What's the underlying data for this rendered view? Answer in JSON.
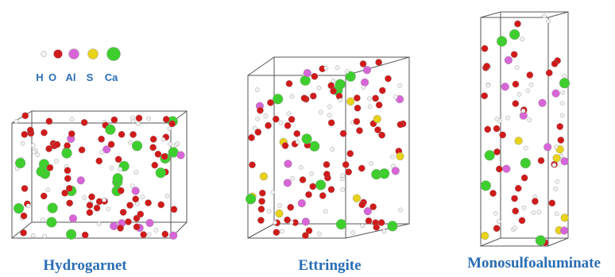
{
  "legend": {
    "items": [
      {
        "label": "H",
        "color": "#f2f2f2"
      },
      {
        "label": "O",
        "color": "#d11a1a"
      },
      {
        "label": "Al",
        "color": "#d865d8"
      },
      {
        "label": "S",
        "color": "#e8d21a"
      },
      {
        "label": "Ca",
        "color": "#3ecf2e"
      }
    ]
  },
  "structures": [
    {
      "label": "Hydrogarnet"
    },
    {
      "label": "Ettringite"
    },
    {
      "label": "Monosulfoaluminate"
    }
  ]
}
